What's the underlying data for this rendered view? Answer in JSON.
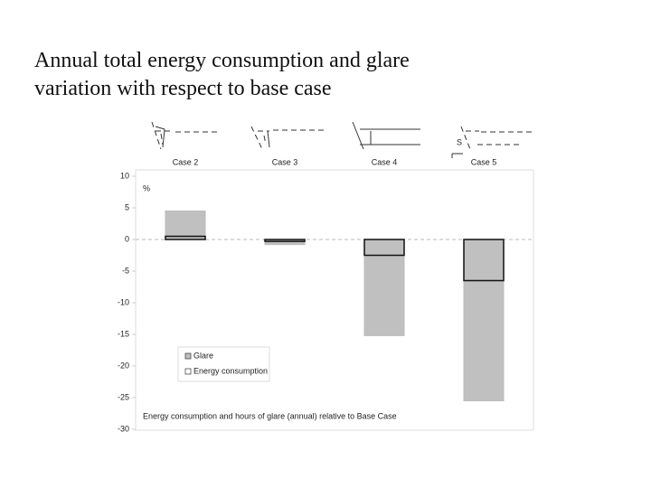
{
  "slide_title": "Annual total energy consumption and glare variation with respect to base case",
  "chart_data": {
    "type": "bar",
    "xlabel": "Energy consumption and hours of glare (annual) relative to Base Case",
    "ylabel": "%",
    "categories": [
      "Case 2",
      "Case 3",
      "Case 4",
      "Case 5"
    ],
    "series": [
      {
        "name": "Glare",
        "color": "#c0c0c0",
        "values": [
          4.5,
          -0.8,
          -15.2,
          -25.5
        ]
      },
      {
        "name": "Energy consumption",
        "color": "#ffffff",
        "values": [
          0.5,
          -0.3,
          -2.5,
          -6.5
        ]
      }
    ],
    "ylim": [
      -30,
      10
    ],
    "yticks": [
      10,
      5,
      0,
      -5,
      -10,
      -15,
      -20,
      -25,
      -30
    ],
    "grid": false,
    "legend": "lower left",
    "annotations": [
      "S"
    ]
  }
}
